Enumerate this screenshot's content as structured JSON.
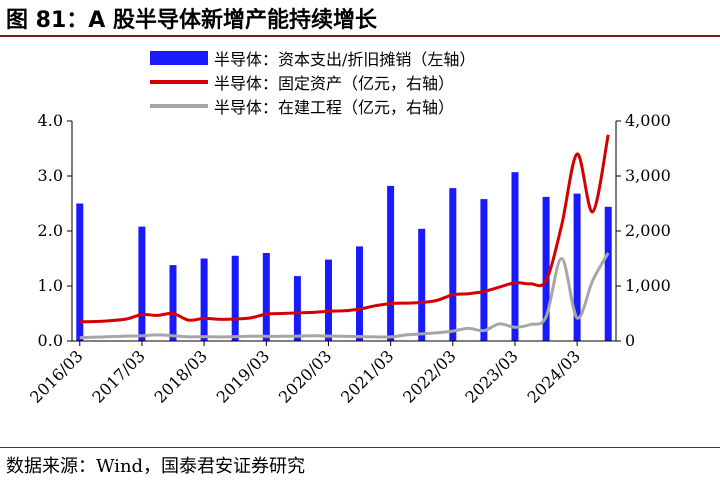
{
  "header": {
    "title": "图 81：A 股半导体新增产能持续增长"
  },
  "footer": {
    "source": "数据来源：Wind，国泰君安证券研究"
  },
  "colors": {
    "capex": "#1a1aff",
    "fixed_assets": "#d40000",
    "construction": "#a6a6a6",
    "rule": "#7f1d1d"
  },
  "chart_data": {
    "type": "bar+line",
    "legend": [
      {
        "name": "半导体：资本支出/折旧摊销（左轴）",
        "kind": "bar"
      },
      {
        "name": "半导体：固定资产（亿元，右轴）",
        "kind": "line"
      },
      {
        "name": "半导体：在建工程（亿元，右轴）",
        "kind": "line"
      }
    ],
    "x_ticks": [
      "2016/03",
      "2017/03",
      "2018/03",
      "2019/03",
      "2020/03",
      "2021/03",
      "2022/03",
      "2023/03",
      "2024/03"
    ],
    "left_axis": {
      "min": 0,
      "max": 4.0,
      "ticks": [
        "0.0",
        "1.0",
        "2.0",
        "3.0",
        "4.0"
      ]
    },
    "right_axis": {
      "min": 0,
      "max": 4000,
      "ticks": [
        "0",
        "1,000",
        "2,000",
        "3,000",
        "4,000"
      ]
    },
    "quarters": 35,
    "capex_to_da": [
      {
        "q": 0,
        "value": 2.5
      },
      {
        "q": 4,
        "value": 2.08
      },
      {
        "q": 6,
        "value": 1.38
      },
      {
        "q": 8,
        "value": 1.5
      },
      {
        "q": 10,
        "value": 1.55
      },
      {
        "q": 12,
        "value": 1.6
      },
      {
        "q": 14,
        "value": 1.18
      },
      {
        "q": 16,
        "value": 1.48
      },
      {
        "q": 18,
        "value": 1.72
      },
      {
        "q": 20,
        "value": 2.82
      },
      {
        "q": 22,
        "value": 2.04
      },
      {
        "q": 24,
        "value": 2.78
      },
      {
        "q": 26,
        "value": 2.58
      },
      {
        "q": 28,
        "value": 3.07
      },
      {
        "q": 30,
        "value": 2.62
      },
      {
        "q": 32,
        "value": 2.68
      },
      {
        "q": 34,
        "value": 2.44
      }
    ],
    "fixed_assets": [
      350,
      355,
      370,
      400,
      480,
      465,
      500,
      380,
      410,
      395,
      400,
      420,
      490,
      500,
      510,
      520,
      540,
      550,
      580,
      640,
      680,
      690,
      700,
      740,
      840,
      860,
      900,
      980,
      1060,
      1040,
      1100,
      2100,
      3400,
      2350,
      3750
    ],
    "construction": [
      60,
      70,
      80,
      90,
      95,
      110,
      95,
      75,
      80,
      75,
      80,
      85,
      85,
      85,
      90,
      95,
      90,
      85,
      80,
      75,
      75,
      110,
      130,
      150,
      180,
      230,
      190,
      310,
      250,
      300,
      440,
      1500,
      420,
      1100,
      1600
    ]
  }
}
